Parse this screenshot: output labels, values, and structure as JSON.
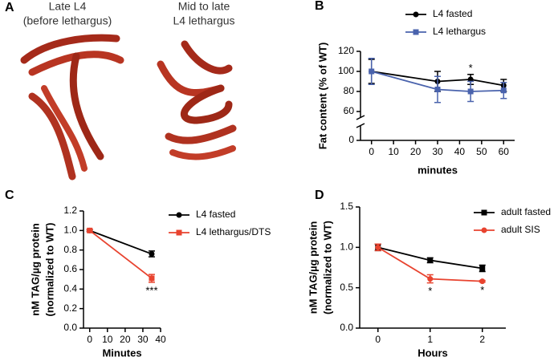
{
  "panel_a": {
    "panel_label": "A",
    "left_caption": [
      "Late L4",
      "(before lethargus)"
    ],
    "right_caption": [
      "Mid to late",
      "L4 lethargus"
    ]
  },
  "chart_data": [
    {
      "type": "line",
      "panel_label": "B",
      "xlabel": "minutes",
      "ylabel": "Fat content (% of WT)",
      "x": [
        0,
        30,
        45,
        60
      ],
      "xlim": [
        -5,
        65
      ],
      "xticks": [
        0,
        10,
        20,
        30,
        40,
        50,
        60
      ],
      "ylim": [
        60,
        120
      ],
      "yticks": [
        0,
        60,
        80,
        100,
        120
      ],
      "y_break": true,
      "legend": "upper right",
      "series": [
        {
          "name": "L4 fasted",
          "color": "#000000",
          "marker": "circle",
          "values": [
            100,
            90,
            92,
            86
          ],
          "errors": [
            12,
            10,
            5,
            6
          ]
        },
        {
          "name": "L4 lethargus",
          "color": "#4a63ad",
          "marker": "square",
          "values": [
            100,
            82,
            80,
            81
          ],
          "errors": [
            13,
            13,
            10,
            8
          ]
        }
      ],
      "annotations": [
        {
          "text": "*",
          "x": 45,
          "position": "above"
        }
      ]
    },
    {
      "type": "line",
      "panel_label": "C",
      "xlabel": "Minutes",
      "ylabel": [
        "nM TAG/µg protein",
        "(normalized to WT)"
      ],
      "x": [
        0,
        35
      ],
      "xlim": [
        -3.5,
        40
      ],
      "xticks": [
        0,
        10,
        20,
        30,
        40
      ],
      "ylim": [
        0,
        1.2
      ],
      "yticks": [
        {
          "value": 0,
          "label": "0.0"
        },
        0.2,
        0.4,
        0.6,
        0.8,
        {
          "value": 1,
          "label": "1.0"
        },
        1.2
      ],
      "legend": "right",
      "series": [
        {
          "name": "L4 fasted",
          "color": "#000000",
          "marker": "circle",
          "values": [
            1.0,
            0.76
          ],
          "errors": [
            0.01,
            0.03
          ]
        },
        {
          "name": "L4 lethargus/DTS",
          "color": "#e8432f",
          "marker": "square",
          "values": [
            1.0,
            0.51
          ],
          "errors": [
            0.01,
            0.04
          ]
        }
      ],
      "annotations": [
        {
          "text": "***",
          "x": 35,
          "position": "below"
        }
      ]
    },
    {
      "type": "line",
      "panel_label": "D",
      "xlabel": "Hours",
      "ylabel": [
        "nM TAG/µg protein",
        "(normalized to WT)"
      ],
      "x": [
        0,
        1,
        2
      ],
      "xlim": [
        -0.35,
        2.45
      ],
      "xticks": [
        0,
        1,
        2
      ],
      "ylim": [
        0,
        1.5
      ],
      "yticks": [
        {
          "value": 0,
          "label": "0.0"
        },
        0.5,
        {
          "value": 1,
          "label": "1.0"
        },
        1.5
      ],
      "legend": "right",
      "series": [
        {
          "name": "adult fasted",
          "color": "#000000",
          "marker": "square",
          "values": [
            1.0,
            0.84,
            0.74
          ],
          "errors": [
            0.04,
            0.03,
            0.04
          ]
        },
        {
          "name": "adult SIS",
          "color": "#e8432f",
          "marker": "circle",
          "values": [
            1.0,
            0.61,
            0.58
          ],
          "errors": [
            0.04,
            0.05,
            0.01
          ]
        }
      ],
      "annotations": [
        {
          "text": "*",
          "x": 1,
          "position": "below"
        },
        {
          "text": "*",
          "x": 2,
          "position": "below"
        }
      ]
    }
  ]
}
